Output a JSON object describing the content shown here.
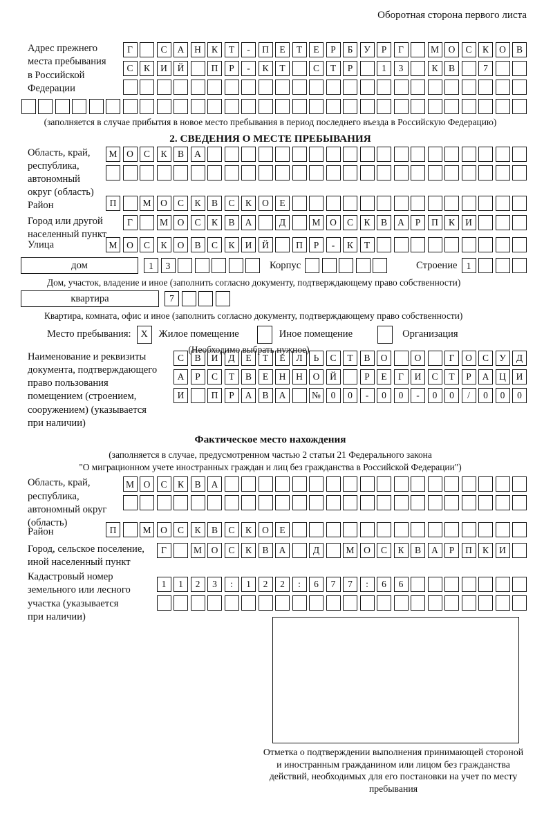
{
  "header": {
    "page_label": "Оборотная сторона первого листа"
  },
  "colors": {
    "ink": "#161616",
    "paper": "#ffffff"
  },
  "prev_address": {
    "label": "Адрес прежнего\nместа пребывания\nв Российской\nФедерации",
    "row1": {
      "t": "Г САНКТ-ПЕТЕРБУРГ МОСКОВ",
      "n": 24
    },
    "row2": {
      "t": "СКИЙ ПР-КТ СТР 13 КВ 7",
      "n": 24
    },
    "row3": {
      "t": "",
      "n": 24
    },
    "row4": {
      "t": "",
      "n": 30
    },
    "note": "(заполняется в случае прибытия в новое место пребывания в период последнего въезда в Российскую Федерацию)"
  },
  "section2": {
    "title": "2. СВЕДЕНИЯ О МЕСТЕ ПРЕБЫВАНИЯ",
    "region": {
      "label": "Область, край,\nреспублика,\nавтономный\nокруг (область)",
      "row1": {
        "t": "МОСКВА",
        "n": 25
      },
      "row2": {
        "t": "",
        "n": 25
      }
    },
    "district": {
      "label": "Район",
      "row": {
        "t": "П МОСКВСКОЕ",
        "n": 25
      }
    },
    "city": {
      "label": "Город или другой\nнаселенный пункт",
      "row": {
        "t": "Г МОСКВА Д МОСКВАРПКИ",
        "n": 24
      }
    },
    "street": {
      "label": "Улица",
      "row": {
        "t": "МОСКОВСКИЙ ПР-КТ",
        "n": 25
      }
    },
    "house": {
      "box_label": "дом",
      "cells": {
        "t": "13",
        "n": 7
      },
      "korpus_label": "Корпус",
      "korpus_cells": {
        "t": "",
        "n": 5
      },
      "stroenie_label": "Строение",
      "stroenie_cells": {
        "t": "1",
        "n": 4
      },
      "note": "Дом, участок, владение и иное (заполнить согласно документу, подтверждающему право собственности)"
    },
    "apartment": {
      "box_label": "квартира",
      "cells": {
        "t": "7",
        "n": 4
      },
      "note": "Квартира, комната, офис и иное (заполнить согласно документу, подтверждающему право собственности)"
    },
    "stay_type": {
      "label": "Место пребывания:",
      "options": [
        {
          "label": "Жилое помещение",
          "checked": "X"
        },
        {
          "label": "Иное помещение",
          "checked": ""
        },
        {
          "label": "Организация",
          "checked": ""
        }
      ],
      "note": "(Необходимо выбрать нужное)"
    },
    "document": {
      "label": "Наименование и реквизиты\nдокумента, подтверждающего\nправо пользования\nпомещением (строением,\nсооружением) (указывается\nпри наличии)",
      "row1": {
        "t": "СВИДЕТЕЛЬСТВО О ГОСУД",
        "n": 21
      },
      "row2": {
        "t": "АРСТВЕННОЙ РЕГИСТРАЦИ",
        "n": 21
      },
      "row3": {
        "t": "И ПРАВА №00-00-00/000",
        "n": 21
      }
    }
  },
  "actual_location": {
    "title": "Фактическое место нахождения",
    "note1": "(заполняется в случае, предусмотренном частью 2 статьи 21 Федерального закона",
    "note2": "\"О миграционном учете иностранных граждан и лиц без гражданства в Российской Федерации\")",
    "region": {
      "label": "Область, край,\nреспублика,\nавтономный округ\n(область)",
      "row1": {
        "t": "МОСКВА",
        "n": 24
      },
      "row2": {
        "t": "",
        "n": 24
      }
    },
    "district": {
      "label": "Район",
      "row": {
        "t": "П МОСКВСКОЕ",
        "n": 25
      }
    },
    "city": {
      "label": "Город, сельское поселение,\nиной населенный пункт",
      "row": {
        "t": "Г МОСКВА Д МОСКВАРПКИ",
        "n": 22
      }
    },
    "cadastral": {
      "label": "Кадастровый номер\nземельного или лесного\nучастка (указывается\nпри наличии)",
      "row1": {
        "t": "1123:122:677:66",
        "n": 22
      },
      "row2": {
        "t": "",
        "n": 22
      }
    }
  },
  "confirmation": {
    "caption": "Отметка о подтверждении выполнения принимающей стороной и иностранным гражданином или лицом без гражданства действий, необходимых для его постановки на учет по месту пребывания"
  }
}
